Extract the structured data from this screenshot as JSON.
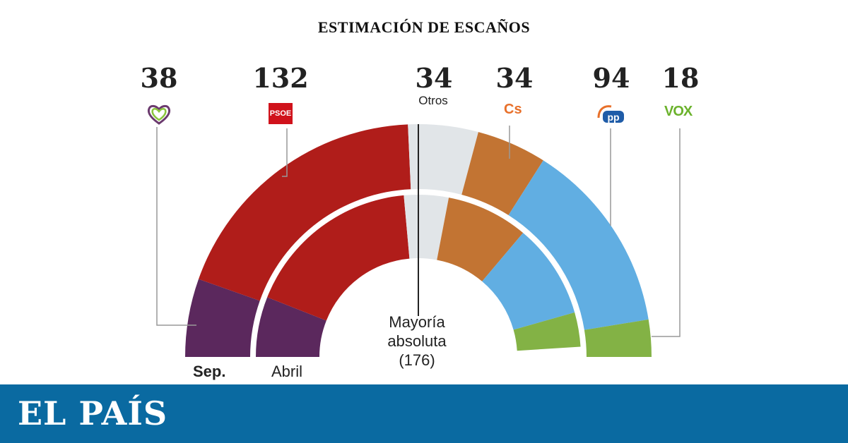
{
  "title": "ESTIMACIÓN DE ESCAÑOS",
  "labels": {
    "outer_ring": "Sep.",
    "inner_ring": "Abril",
    "majority_line1": "Mayoría",
    "majority_line2": "absoluta",
    "majority_line3": "(176)",
    "otros": "Otros"
  },
  "logos": {
    "psoe": "PSOE",
    "cs": "Cs",
    "vox": "VOX"
  },
  "brand": "EL PAÍS",
  "chart_data": {
    "type": "semicircle-parliament",
    "total_seats": 350,
    "majority": 176,
    "parties": [
      "Unidas Podemos",
      "PSOE",
      "Otros",
      "Cs",
      "PP",
      "VOX"
    ],
    "colors": {
      "Unidas Podemos": "#5b285d",
      "PSOE": "#b01d1a",
      "Otros": "#e1e5e8",
      "Cs": "#c27433",
      "PP": "#61aee2",
      "VOX": "#83b245"
    },
    "series": [
      {
        "name": "Sep.",
        "values": [
          38,
          132,
          34,
          34,
          94,
          18
        ]
      },
      {
        "name": "Abril",
        "values": [
          42,
          123,
          31,
          57,
          66,
          24
        ]
      }
    ],
    "displayed_numbers": [
      "38",
      "132",
      "34",
      "34",
      "94",
      "18"
    ]
  }
}
